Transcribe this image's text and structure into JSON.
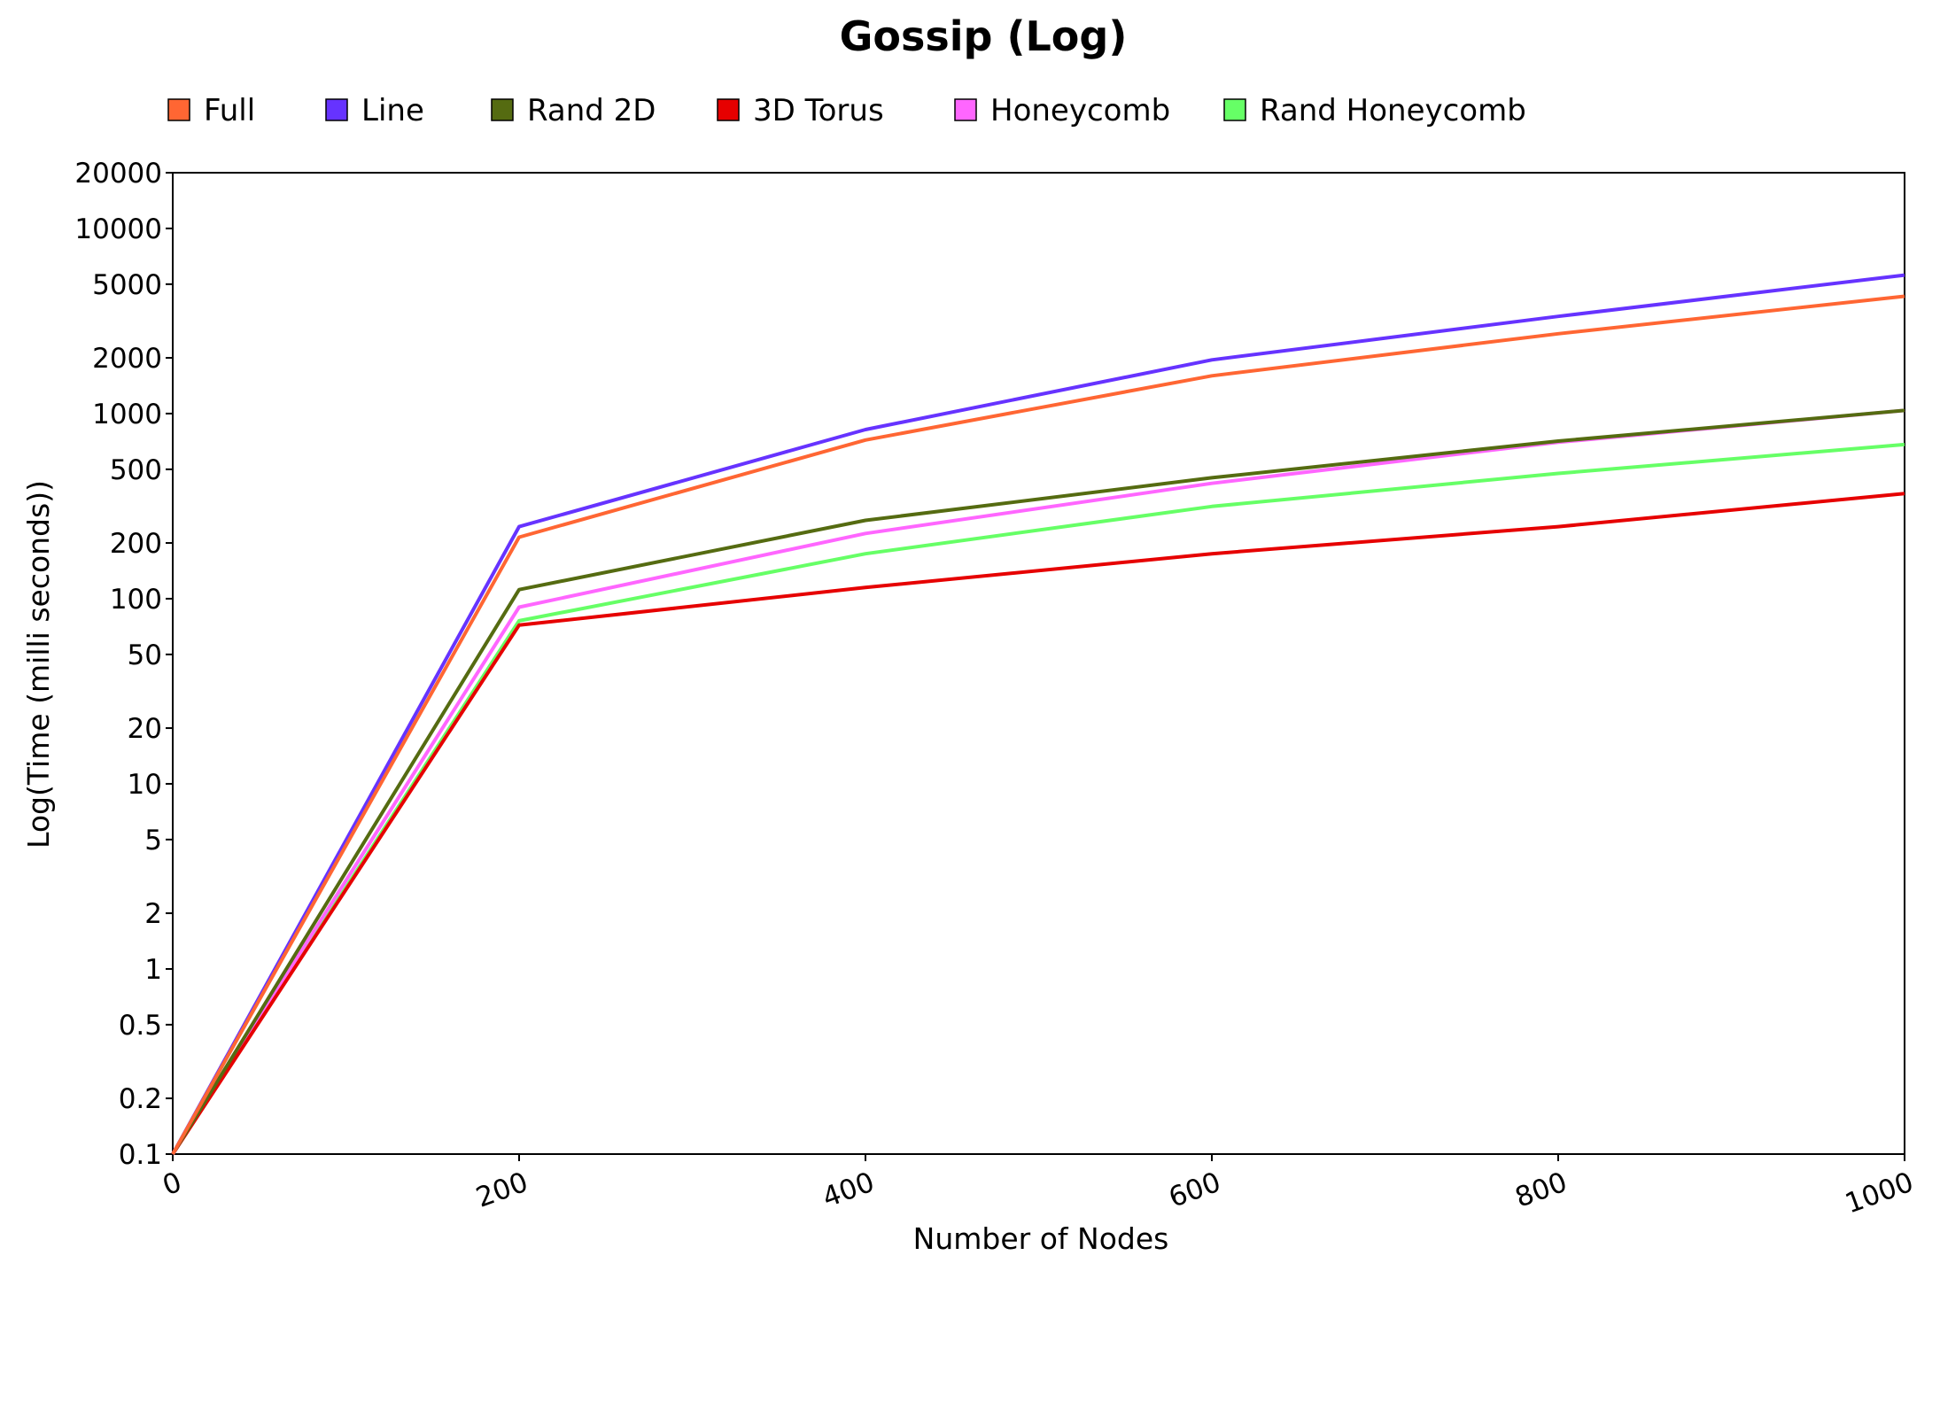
{
  "chart_data": {
    "type": "line",
    "title": "Gossip (Log)",
    "xlabel": "Number of Nodes",
    "ylabel": "Log(Time (milli seconds))",
    "yscale": "log",
    "xlim": [
      0,
      1000
    ],
    "ylim": [
      0.1,
      20000
    ],
    "x_ticks": [
      0,
      200,
      400,
      600,
      800,
      1000
    ],
    "x_tick_labels": [
      "0",
      "200",
      "400",
      "600",
      "800",
      "1000"
    ],
    "y_ticks": [
      0.1,
      0.2,
      0.5,
      1,
      2,
      5,
      10,
      20,
      50,
      100,
      200,
      500,
      1000,
      2000,
      5000,
      10000,
      20000
    ],
    "y_tick_labels": [
      "0.1",
      "0.2",
      "0.5",
      "1",
      "2",
      "5",
      "10",
      "20",
      "50",
      "100",
      "200",
      "500",
      "1000",
      "2000",
      "5000",
      "10000",
      "20000"
    ],
    "grid": false,
    "legend_position": "top",
    "series": [
      {
        "name": "Full",
        "color": "#ff6633",
        "x": [
          0,
          200,
          400,
          600,
          800,
          1000
        ],
        "y": [
          0.1,
          215,
          720,
          1600,
          2700,
          4300
        ]
      },
      {
        "name": "Line",
        "color": "#6633ff",
        "x": [
          0,
          200,
          400,
          600,
          800,
          1000
        ],
        "y": [
          0.1,
          245,
          820,
          1950,
          3350,
          5600
        ]
      },
      {
        "name": "Rand 2D",
        "color": "#556b11",
        "x": [
          0,
          200,
          400,
          600,
          800,
          1000
        ],
        "y": [
          0.1,
          112,
          265,
          450,
          710,
          1040
        ]
      },
      {
        "name": "3D Torus",
        "color": "#e60000",
        "x": [
          0,
          200,
          400,
          600,
          800,
          1000
        ],
        "y": [
          0.1,
          72,
          115,
          175,
          245,
          370
        ]
      },
      {
        "name": "Honeycomb",
        "color": "#ff66ff",
        "x": [
          0,
          200,
          400,
          600,
          800,
          1000
        ],
        "y": [
          0.1,
          90,
          225,
          420,
          700,
          1040
        ]
      },
      {
        "name": "Rand Honeycomb",
        "color": "#66ff66",
        "x": [
          0,
          200,
          400,
          600,
          800,
          1000
        ],
        "y": [
          0.1,
          76,
          175,
          315,
          475,
          680
        ]
      }
    ]
  }
}
